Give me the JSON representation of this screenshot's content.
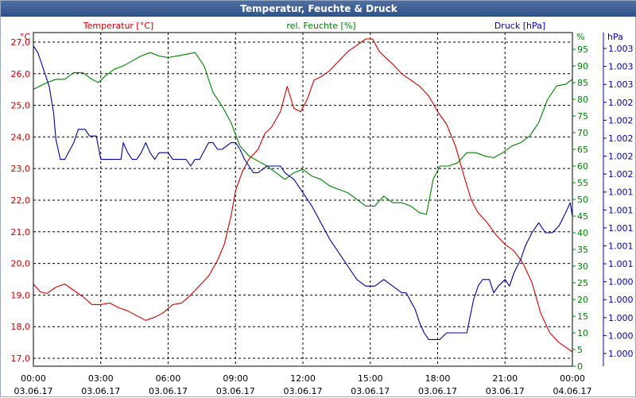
{
  "window_title": "Temperatur, Feuchte & Druck",
  "colors": {
    "temp": "#cc0000",
    "hum": "#008000",
    "press": "#00009c",
    "grid": "#000000"
  },
  "chart_data": {
    "type": "line",
    "title": "Temperatur, Feuchte & Druck",
    "grid": true,
    "x_ticks": [
      {
        "time": "00:00",
        "date": "03.06.17"
      },
      {
        "time": "03:00",
        "date": "03.06.17"
      },
      {
        "time": "06:00",
        "date": "03.06.17"
      },
      {
        "time": "09:00",
        "date": "03.06.17"
      },
      {
        "time": "12:00",
        "date": "03.06.17"
      },
      {
        "time": "15:00",
        "date": "03.06.17"
      },
      {
        "time": "18:00",
        "date": "03.06.17"
      },
      {
        "time": "21:00",
        "date": "03.06.17"
      },
      {
        "time": "00:00",
        "date": "04.06.17"
      }
    ],
    "xlim": [
      0,
      24
    ],
    "axes": {
      "temp": {
        "unit": "°C",
        "label": "Temperatur [°C]",
        "ylim": [
          16.75,
          27.3
        ],
        "ticks": [
          "17,0",
          "18,0",
          "19,0",
          "20,0",
          "21,0",
          "22,0",
          "23,0",
          "24,0",
          "25,0",
          "26,0",
          "27,0"
        ]
      },
      "hum": {
        "unit": "%",
        "label": "rel. Feuchte [%]",
        "ylim": [
          0,
          100
        ],
        "ticks": [
          "0",
          "5",
          "10",
          "15",
          "20",
          "25",
          "30",
          "35",
          "40",
          "45",
          "50",
          "55",
          "60",
          "65",
          "70",
          "75",
          "80",
          "85",
          "90",
          "95"
        ]
      },
      "press": {
        "unit": "hPa",
        "label": "Druck [hPa]",
        "ylim": [
          0,
          100
        ],
        "ticks": [
          "1.000",
          "1.000",
          "1.000",
          "1.000",
          "1.000",
          "1.001",
          "1.001",
          "1.001",
          "1.001",
          "1.001",
          "1.002",
          "1.002",
          "1.002",
          "1.002",
          "1.002",
          "1.003",
          "1.003",
          "1.003"
        ]
      }
    },
    "series": [
      {
        "name": "Temperatur [°C]",
        "axis": "temp",
        "points": [
          [
            0,
            19.35
          ],
          [
            0.3,
            19.1
          ],
          [
            0.6,
            19.05
          ],
          [
            1.0,
            19.25
          ],
          [
            1.4,
            19.35
          ],
          [
            1.8,
            19.15
          ],
          [
            2.2,
            18.95
          ],
          [
            2.6,
            18.7
          ],
          [
            3.0,
            18.7
          ],
          [
            3.4,
            18.75
          ],
          [
            3.8,
            18.6
          ],
          [
            4.2,
            18.5
          ],
          [
            4.6,
            18.35
          ],
          [
            5.0,
            18.2
          ],
          [
            5.4,
            18.3
          ],
          [
            5.8,
            18.45
          ],
          [
            6.2,
            18.7
          ],
          [
            6.6,
            18.75
          ],
          [
            7.0,
            19.0
          ],
          [
            7.4,
            19.3
          ],
          [
            7.8,
            19.6
          ],
          [
            8.2,
            20.1
          ],
          [
            8.5,
            20.6
          ],
          [
            8.8,
            21.5
          ],
          [
            9.0,
            22.3
          ],
          [
            9.3,
            22.9
          ],
          [
            9.6,
            23.3
          ],
          [
            10.0,
            23.6
          ],
          [
            10.3,
            24.1
          ],
          [
            10.6,
            24.3
          ],
          [
            11.0,
            24.8
          ],
          [
            11.3,
            25.6
          ],
          [
            11.6,
            24.9
          ],
          [
            11.9,
            24.8
          ],
          [
            12.2,
            25.2
          ],
          [
            12.5,
            25.8
          ],
          [
            12.8,
            25.9
          ],
          [
            13.2,
            26.1
          ],
          [
            13.6,
            26.4
          ],
          [
            14.0,
            26.7
          ],
          [
            14.4,
            26.9
          ],
          [
            14.8,
            27.1
          ],
          [
            15.1,
            27.1
          ],
          [
            15.4,
            26.7
          ],
          [
            15.7,
            26.5
          ],
          [
            16.0,
            26.3
          ],
          [
            16.4,
            26.0
          ],
          [
            16.8,
            25.8
          ],
          [
            17.2,
            25.6
          ],
          [
            17.6,
            25.3
          ],
          [
            18.0,
            24.8
          ],
          [
            18.4,
            24.4
          ],
          [
            18.8,
            23.7
          ],
          [
            19.2,
            22.7
          ],
          [
            19.5,
            22.0
          ],
          [
            19.8,
            21.6
          ],
          [
            20.2,
            21.3
          ],
          [
            20.6,
            20.9
          ],
          [
            21.0,
            20.6
          ],
          [
            21.4,
            20.4
          ],
          [
            21.8,
            20.0
          ],
          [
            22.2,
            19.4
          ],
          [
            22.6,
            18.4
          ],
          [
            23.0,
            17.8
          ],
          [
            23.4,
            17.5
          ],
          [
            23.7,
            17.35
          ],
          [
            24.0,
            17.2
          ]
        ]
      },
      {
        "name": "rel. Feuchte [%]",
        "axis": "hum",
        "points": [
          [
            0,
            83
          ],
          [
            0.3,
            84
          ],
          [
            0.6,
            85
          ],
          [
            1.0,
            86
          ],
          [
            1.4,
            86
          ],
          [
            1.8,
            88
          ],
          [
            2.2,
            88
          ],
          [
            2.6,
            86
          ],
          [
            2.9,
            85
          ],
          [
            3.2,
            87
          ],
          [
            3.6,
            89
          ],
          [
            4.0,
            90
          ],
          [
            4.4,
            91.5
          ],
          [
            4.8,
            93
          ],
          [
            5.2,
            94
          ],
          [
            5.6,
            93
          ],
          [
            6.0,
            92.5
          ],
          [
            6.4,
            93
          ],
          [
            6.8,
            93.5
          ],
          [
            7.2,
            94
          ],
          [
            7.6,
            90
          ],
          [
            8.0,
            82
          ],
          [
            8.4,
            78
          ],
          [
            8.8,
            73
          ],
          [
            9.2,
            66
          ],
          [
            9.6,
            63
          ],
          [
            10.0,
            61.5
          ],
          [
            10.4,
            60
          ],
          [
            10.8,
            58
          ],
          [
            11.2,
            56
          ],
          [
            11.6,
            58
          ],
          [
            12.0,
            59
          ],
          [
            12.4,
            57
          ],
          [
            12.8,
            56
          ],
          [
            13.2,
            54
          ],
          [
            13.6,
            53
          ],
          [
            14.0,
            52
          ],
          [
            14.4,
            50
          ],
          [
            14.8,
            48
          ],
          [
            15.2,
            48
          ],
          [
            15.6,
            51
          ],
          [
            16.0,
            49
          ],
          [
            16.4,
            49
          ],
          [
            16.8,
            48
          ],
          [
            17.2,
            46
          ],
          [
            17.5,
            45.5
          ],
          [
            17.8,
            56
          ],
          [
            18.1,
            60
          ],
          [
            18.5,
            60
          ],
          [
            18.9,
            61
          ],
          [
            19.3,
            64
          ],
          [
            19.7,
            64
          ],
          [
            20.1,
            63
          ],
          [
            20.5,
            62.5
          ],
          [
            20.9,
            64
          ],
          [
            21.3,
            66
          ],
          [
            21.7,
            67
          ],
          [
            22.1,
            69
          ],
          [
            22.5,
            73
          ],
          [
            22.9,
            80
          ],
          [
            23.3,
            84
          ],
          [
            23.7,
            84.5
          ],
          [
            24.0,
            86
          ]
        ]
      },
      {
        "name": "Druck [hPa]",
        "axis": "press",
        "points": [
          [
            0,
            96
          ],
          [
            0.2,
            94
          ],
          [
            0.4,
            90
          ],
          [
            0.7,
            84
          ],
          [
            0.9,
            76
          ],
          [
            1.0,
            68
          ],
          [
            1.2,
            62
          ],
          [
            1.4,
            62
          ],
          [
            1.8,
            67
          ],
          [
            2.0,
            71
          ],
          [
            2.3,
            71
          ],
          [
            2.5,
            69
          ],
          [
            2.8,
            69
          ],
          [
            3.0,
            62
          ],
          [
            3.2,
            62
          ],
          [
            3.6,
            62
          ],
          [
            3.9,
            62
          ],
          [
            4.0,
            67
          ],
          [
            4.2,
            64
          ],
          [
            4.4,
            62
          ],
          [
            4.6,
            62
          ],
          [
            4.8,
            64
          ],
          [
            5.0,
            67
          ],
          [
            5.2,
            64
          ],
          [
            5.4,
            62
          ],
          [
            5.6,
            64
          ],
          [
            5.8,
            64
          ],
          [
            6.0,
            64
          ],
          [
            6.2,
            62
          ],
          [
            6.4,
            62
          ],
          [
            6.8,
            62
          ],
          [
            7.0,
            60
          ],
          [
            7.2,
            62
          ],
          [
            7.4,
            62
          ],
          [
            7.8,
            67
          ],
          [
            8.0,
            67
          ],
          [
            8.2,
            65
          ],
          [
            8.4,
            65
          ],
          [
            8.8,
            67
          ],
          [
            9.0,
            67
          ],
          [
            9.2,
            65
          ],
          [
            9.4,
            62
          ],
          [
            9.6,
            60
          ],
          [
            9.8,
            58
          ],
          [
            10.0,
            58
          ],
          [
            10.4,
            60
          ],
          [
            10.8,
            60
          ],
          [
            11.0,
            60
          ],
          [
            11.2,
            58
          ],
          [
            11.6,
            56
          ],
          [
            11.8,
            54
          ],
          [
            12.0,
            52
          ],
          [
            12.4,
            48
          ],
          [
            12.8,
            43
          ],
          [
            13.2,
            38
          ],
          [
            13.6,
            34
          ],
          [
            14.0,
            30
          ],
          [
            14.4,
            26
          ],
          [
            14.8,
            24
          ],
          [
            15.2,
            24
          ],
          [
            15.6,
            26
          ],
          [
            16.0,
            24
          ],
          [
            16.4,
            22
          ],
          [
            16.6,
            22
          ],
          [
            17.0,
            17
          ],
          [
            17.2,
            13
          ],
          [
            17.4,
            10
          ],
          [
            17.6,
            8
          ],
          [
            17.8,
            8
          ],
          [
            18.1,
            8
          ],
          [
            18.4,
            10
          ],
          [
            18.6,
            10
          ],
          [
            18.9,
            10
          ],
          [
            19.3,
            10
          ],
          [
            19.6,
            20
          ],
          [
            19.8,
            24
          ],
          [
            20.0,
            26
          ],
          [
            20.3,
            26
          ],
          [
            20.5,
            22
          ],
          [
            20.7,
            24
          ],
          [
            21.0,
            26
          ],
          [
            21.2,
            24
          ],
          [
            21.4,
            28
          ],
          [
            21.7,
            32
          ],
          [
            21.9,
            36
          ],
          [
            22.2,
            40
          ],
          [
            22.5,
            43
          ],
          [
            22.8,
            40
          ],
          [
            23.1,
            40
          ],
          [
            23.4,
            42
          ],
          [
            23.7,
            46
          ],
          [
            23.9,
            49
          ],
          [
            24.0,
            45
          ]
        ]
      }
    ]
  }
}
